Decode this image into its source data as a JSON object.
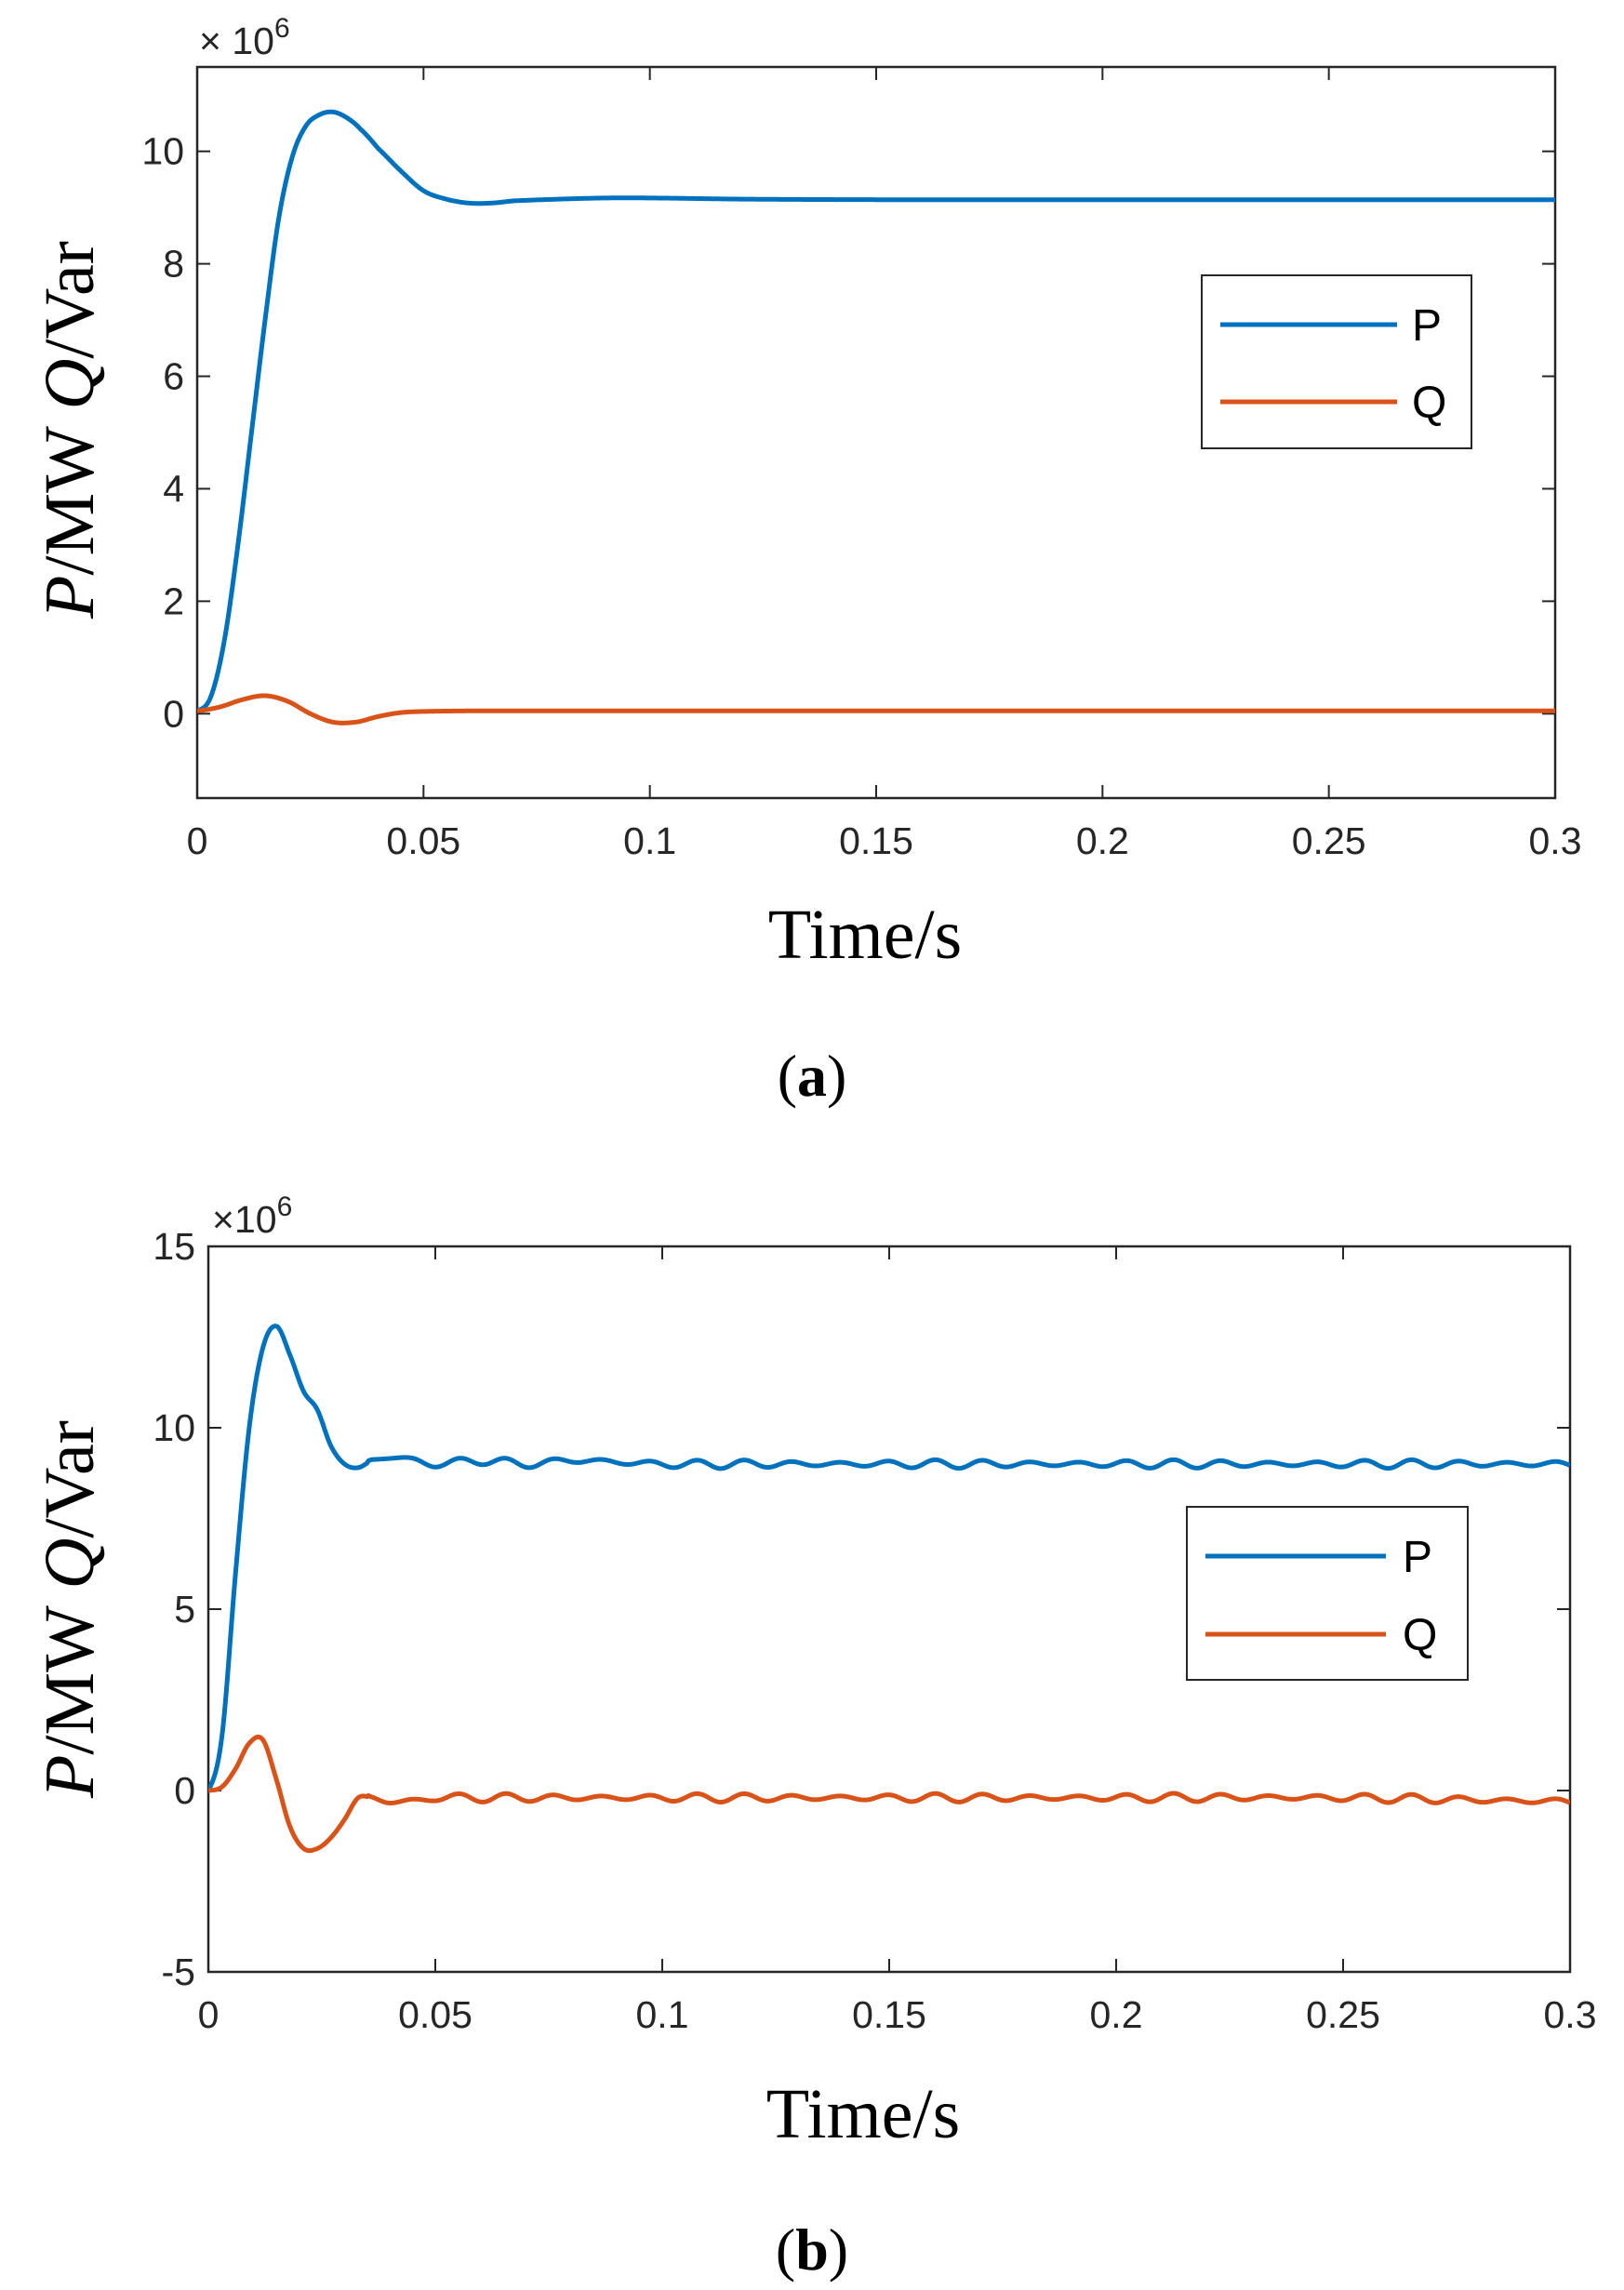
{
  "chart_data": [
    {
      "id": "a",
      "type": "line",
      "caption_open": "(",
      "caption_letter": "a",
      "caption_close": ")",
      "multiplier_prefix": "× 10",
      "multiplier_exp": "6",
      "xlabel": "Time/s",
      "ylabel_p": "P",
      "ylabel_mid": "/MW ",
      "ylabel_q": "Q",
      "ylabel_end": "/Var",
      "xlim": [
        0,
        0.3
      ],
      "ylim": [
        -1.5,
        11.5
      ],
      "xticks": [
        0,
        0.05,
        0.1,
        0.15,
        0.2,
        0.25,
        0.3
      ],
      "xtick_labels": [
        "0",
        "0.05",
        "0.1",
        "0.15",
        "0.2",
        "0.25",
        "0.3"
      ],
      "yticks": [
        0,
        2,
        4,
        6,
        8,
        10
      ],
      "ytick_labels": [
        "0",
        "2",
        "4",
        "6",
        "8",
        "10"
      ],
      "legend": [
        "P",
        "Q"
      ],
      "legend_position": "upper-right",
      "series": [
        {
          "name": "P",
          "color": "#0072BD",
          "x": [
            0,
            0.003,
            0.006,
            0.009,
            0.012,
            0.015,
            0.018,
            0.021,
            0.024,
            0.027,
            0.03,
            0.033,
            0.036,
            0.04,
            0.045,
            0.05,
            0.055,
            0.06,
            0.065,
            0.07,
            0.08,
            0.09,
            0.1,
            0.12,
            0.15,
            0.2,
            0.25,
            0.3
          ],
          "y": [
            0.05,
            0.3,
            1.3,
            3.0,
            5.0,
            7.0,
            8.8,
            9.9,
            10.45,
            10.65,
            10.7,
            10.6,
            10.4,
            10.05,
            9.65,
            9.3,
            9.15,
            9.08,
            9.08,
            9.12,
            9.15,
            9.17,
            9.17,
            9.15,
            9.14,
            9.14,
            9.14,
            9.14
          ]
        },
        {
          "name": "Q",
          "color": "#D95319",
          "x": [
            0,
            0.005,
            0.01,
            0.015,
            0.02,
            0.025,
            0.03,
            0.035,
            0.04,
            0.045,
            0.05,
            0.06,
            0.08,
            0.1,
            0.15,
            0.2,
            0.25,
            0.3
          ],
          "y": [
            0.05,
            0.12,
            0.25,
            0.32,
            0.22,
            0.0,
            -0.15,
            -0.15,
            -0.05,
            0.02,
            0.04,
            0.05,
            0.05,
            0.05,
            0.05,
            0.05,
            0.05,
            0.05
          ]
        }
      ]
    },
    {
      "id": "b",
      "type": "line",
      "caption_open": "(",
      "caption_letter": "b",
      "caption_close": ")",
      "multiplier_prefix": "×10",
      "multiplier_exp": "6",
      "xlabel": "Time/s",
      "ylabel_p": "P",
      "ylabel_mid": "/MW ",
      "ylabel_q": "Q",
      "ylabel_end": "/Var",
      "xlim": [
        0,
        0.3
      ],
      "ylim": [
        -5,
        15
      ],
      "xticks": [
        0,
        0.05,
        0.1,
        0.15,
        0.2,
        0.25,
        0.3
      ],
      "xtick_labels": [
        "0",
        "0.05",
        "0.1",
        "0.15",
        "0.2",
        "0.25",
        "0.3"
      ],
      "yticks": [
        -5,
        0,
        5,
        10,
        15
      ],
      "ytick_labels": [
        "-5",
        "0",
        "5",
        "10",
        "15"
      ],
      "legend": [
        "P",
        "Q"
      ],
      "legend_position": "right",
      "series": [
        {
          "name": "P",
          "color": "#0072BD",
          "x": [
            0,
            0.003,
            0.006,
            0.009,
            0.012,
            0.015,
            0.018,
            0.021,
            0.024,
            0.027,
            0.03,
            0.033,
            0.036,
            0.04,
            0.045,
            0.05,
            0.06,
            0.07,
            0.08,
            0.1,
            0.12,
            0.15,
            0.2,
            0.25,
            0.3
          ],
          "y": [
            0.0,
            1.5,
            6.0,
            10.0,
            12.2,
            12.8,
            12.0,
            11.0,
            10.5,
            9.5,
            9.0,
            8.9,
            9.1,
            9.2,
            9.1,
            9.0,
            9.1,
            9.0,
            9.1,
            9.0,
            9.0,
            9.0,
            9.0,
            9.0,
            9.0
          ],
          "ripple_amp": 0.12
        },
        {
          "name": "Q",
          "color": "#D95319",
          "x": [
            0,
            0.003,
            0.006,
            0.009,
            0.012,
            0.015,
            0.018,
            0.021,
            0.024,
            0.027,
            0.03,
            0.033,
            0.036,
            0.04,
            0.045,
            0.05,
            0.06,
            0.08,
            0.1,
            0.15,
            0.2,
            0.25,
            0.3
          ],
          "y": [
            0.0,
            0.1,
            0.6,
            1.3,
            1.4,
            0.3,
            -1.0,
            -1.6,
            -1.6,
            -1.3,
            -0.8,
            -0.2,
            -0.2,
            -0.3,
            -0.3,
            -0.2,
            -0.2,
            -0.2,
            -0.2,
            -0.2,
            -0.2,
            -0.2,
            -0.3
          ],
          "ripple_amp": 0.12
        }
      ]
    }
  ]
}
